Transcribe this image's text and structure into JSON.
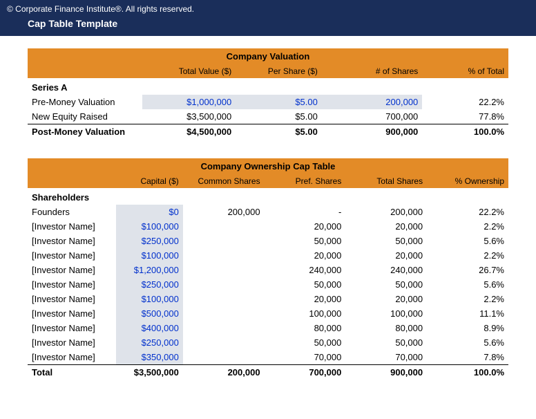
{
  "header": {
    "copyright": "© Corporate Finance Institute®. All rights reserved.",
    "title": "Cap Table Template"
  },
  "valuation": {
    "section_title": "Company Valuation",
    "columns": [
      "",
      "Total Value ($)",
      "Per Share ($)",
      "# of Shares",
      "% of Total"
    ],
    "subheader": "Series A",
    "rows": [
      {
        "label": "Pre-Money Valuation",
        "total_value": "$1,000,000",
        "per_share": "$5.00",
        "shares": "200,000",
        "pct": "22.2%",
        "tv_input": true,
        "ps_input": true,
        "sh_input": true
      },
      {
        "label": "New Equity Raised",
        "total_value": "$3,500,000",
        "per_share": "$5.00",
        "shares": "700,000",
        "pct": "77.8%",
        "tv_input": false,
        "ps_input": false,
        "sh_input": false
      }
    ],
    "total_row": {
      "label": "Post-Money Valuation",
      "total_value": "$4,500,000",
      "per_share": "$5.00",
      "shares": "900,000",
      "pct": "100.0%"
    }
  },
  "ownership": {
    "section_title": "Company Ownership Cap Table",
    "columns": [
      "",
      "Capital ($)",
      "Common Shares",
      "Pref. Shares",
      "Total Shares",
      "% Ownership"
    ],
    "subheader": "Shareholders",
    "rows": [
      {
        "label": "Founders",
        "capital": "$0",
        "common": "200,000",
        "pref": "-",
        "total": "200,000",
        "pct": "22.2%"
      },
      {
        "label": "[Investor Name]",
        "capital": "$100,000",
        "common": "",
        "pref": "20,000",
        "total": "20,000",
        "pct": "2.2%"
      },
      {
        "label": "[Investor Name]",
        "capital": "$250,000",
        "common": "",
        "pref": "50,000",
        "total": "50,000",
        "pct": "5.6%"
      },
      {
        "label": "[Investor Name]",
        "capital": "$100,000",
        "common": "",
        "pref": "20,000",
        "total": "20,000",
        "pct": "2.2%"
      },
      {
        "label": "[Investor Name]",
        "capital": "$1,200,000",
        "common": "",
        "pref": "240,000",
        "total": "240,000",
        "pct": "26.7%"
      },
      {
        "label": "[Investor Name]",
        "capital": "$250,000",
        "common": "",
        "pref": "50,000",
        "total": "50,000",
        "pct": "5.6%"
      },
      {
        "label": "[Investor Name]",
        "capital": "$100,000",
        "common": "",
        "pref": "20,000",
        "total": "20,000",
        "pct": "2.2%"
      },
      {
        "label": "[Investor Name]",
        "capital": "$500,000",
        "common": "",
        "pref": "100,000",
        "total": "100,000",
        "pct": "11.1%"
      },
      {
        "label": "[Investor Name]",
        "capital": "$400,000",
        "common": "",
        "pref": "80,000",
        "total": "80,000",
        "pct": "8.9%"
      },
      {
        "label": "[Investor Name]",
        "capital": "$250,000",
        "common": "",
        "pref": "50,000",
        "total": "50,000",
        "pct": "5.6%"
      },
      {
        "label": "[Investor Name]",
        "capital": "$350,000",
        "common": "",
        "pref": "70,000",
        "total": "70,000",
        "pct": "7.8%"
      }
    ],
    "total_row": {
      "label": "Total",
      "capital": "$3,500,000",
      "common": "200,000",
      "pref": "700,000",
      "total": "900,000",
      "pct": "100.0%"
    },
    "col_widths": [
      "120px",
      "90px",
      "110px",
      "110px",
      "110px",
      "110px"
    ]
  },
  "style": {
    "header_bg": "#1a2e5a",
    "accent_bg": "#e38b27",
    "input_bg": "#dfe3ea",
    "input_fg": "#0030cc",
    "text_color": "#000000",
    "font_family": "Segoe UI, Arial, sans-serif"
  }
}
